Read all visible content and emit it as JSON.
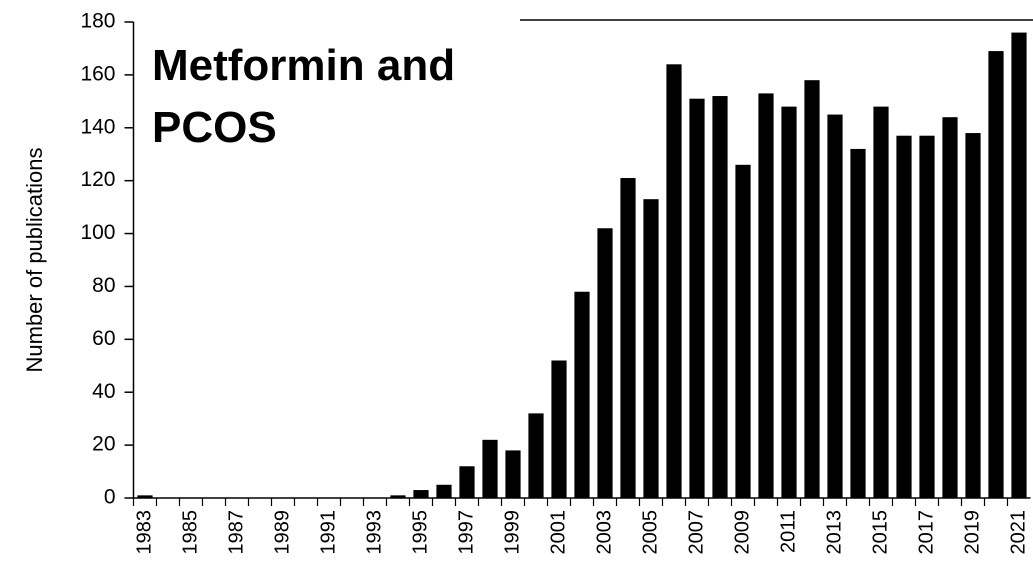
{
  "chart_data": {
    "type": "bar",
    "title_lines": [
      {
        "text": "Metformin and",
        "color": "#8fd05a"
      },
      {
        "text": "PCOS",
        "color": "#c00000"
      }
    ],
    "y_label": "Number of publications",
    "categories": [
      "1983",
      null,
      "1985",
      null,
      "1987",
      null,
      "1989",
      null,
      "1991",
      null,
      "1993",
      null,
      "1995",
      null,
      "1997",
      null,
      "1999",
      null,
      "2001",
      null,
      "2003",
      null,
      "2005",
      null,
      "2007",
      null,
      "2009",
      null,
      "2011",
      null,
      "2013",
      null,
      "2015",
      null,
      "2017",
      null,
      "2019",
      null,
      "2021"
    ],
    "values": [
      1,
      0,
      0,
      0,
      0,
      0,
      0,
      0,
      0,
      0,
      0,
      1,
      3,
      5,
      12,
      22,
      18,
      32,
      52,
      78,
      102,
      121,
      113,
      164,
      151,
      152,
      126,
      153,
      148,
      158,
      145,
      132,
      148,
      137,
      137,
      144,
      138,
      169,
      176
    ],
    "color": "#000000",
    "ylim": [
      0,
      180
    ],
    "yticks": [
      0,
      20,
      40,
      60,
      80,
      100,
      120,
      140,
      160,
      180
    ]
  }
}
